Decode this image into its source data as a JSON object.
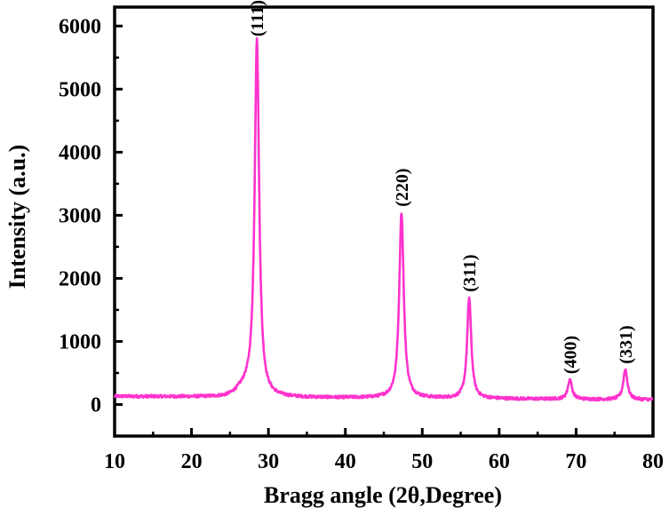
{
  "chart_data": {
    "type": "line",
    "xlabel": "Bragg angle (2θ,Degree)",
    "ylabel": "Intensity (a.u.)",
    "xlim": [
      10,
      80
    ],
    "ylim": [
      -500,
      6300
    ],
    "xticks": [
      "10",
      "20",
      "30",
      "40",
      "50",
      "60",
      "70",
      "80"
    ],
    "yticks": [
      "0",
      "1000",
      "2000",
      "3000",
      "4000",
      "5000",
      "6000"
    ],
    "grid": false,
    "line_color": "#ff33cc",
    "baseline": {
      "start": 130,
      "end": 75
    },
    "peaks": [
      {
        "label": "(111)",
        "x": 28.5,
        "y": 5750,
        "width": 0.35
      },
      {
        "label": "(220)",
        "x": 47.3,
        "y": 3050,
        "width": 0.35
      },
      {
        "label": "(311)",
        "x": 56.1,
        "y": 1700,
        "width": 0.32
      },
      {
        "label": "(400)",
        "x": 69.2,
        "y": 400,
        "width": 0.32
      },
      {
        "label": "(331)",
        "x": 76.4,
        "y": 560,
        "width": 0.32
      }
    ]
  }
}
